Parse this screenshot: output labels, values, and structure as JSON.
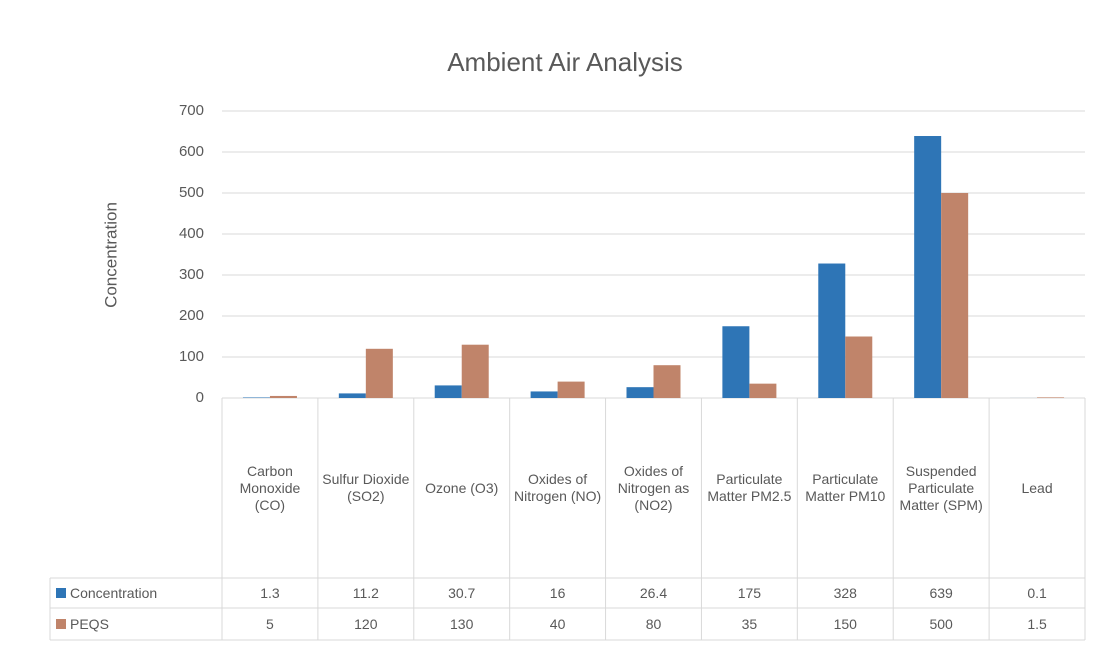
{
  "chart_data": {
    "type": "bar",
    "title": "Ambient Air Analysis",
    "y_label": "Concentration",
    "categories": [
      "Carbon Monoxide (CO)",
      "Sulfur Dioxide (SO2)",
      "Ozone (O3)",
      "Oxides of Nitrogen (NO)",
      "Oxides of Nitrogen as (NO2)",
      "Particulate Matter PM2.5",
      "Particulate Matter PM10",
      "Suspended Particulate Matter (SPM)",
      "Lead"
    ],
    "series": [
      {
        "name": "Concentration",
        "color": "#2e75b6",
        "values": [
          1.3,
          11.2,
          30.7,
          16,
          26.4,
          175,
          328,
          639,
          0.1
        ]
      },
      {
        "name": "PEQS",
        "color": "#c0846a",
        "values": [
          5,
          120,
          130,
          40,
          80,
          35,
          150,
          500,
          1.5
        ]
      }
    ],
    "ylim": [
      0,
      700
    ],
    "yticks": [
      0,
      100,
      200,
      300,
      400,
      500,
      600,
      700
    ],
    "grid": true,
    "data_table": true
  }
}
